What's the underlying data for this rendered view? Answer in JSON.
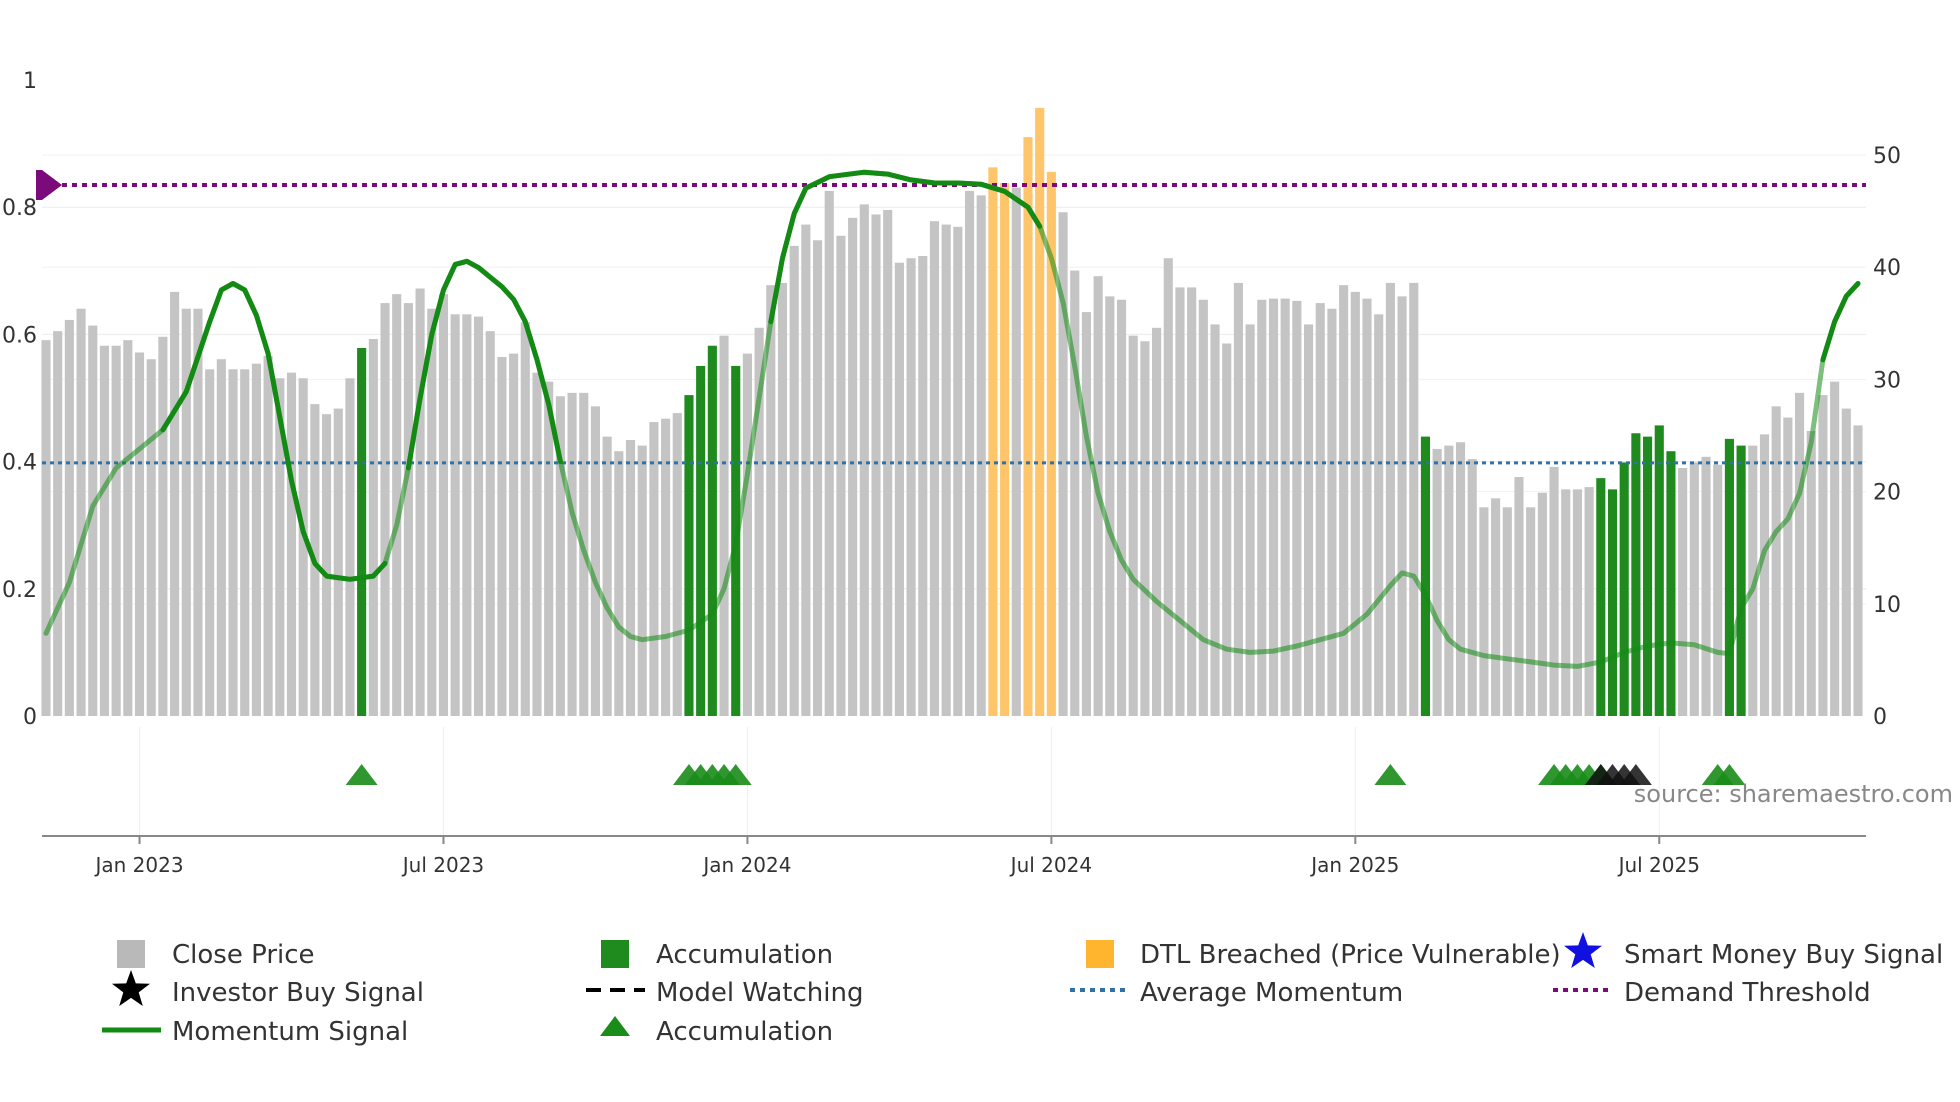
{
  "chart_data": {
    "type": "bar",
    "source": "source: sharemaestro.com",
    "left_axis": {
      "ticks": [
        "0",
        "0.2",
        "0.4",
        "0.6",
        "0.8",
        "1"
      ],
      "values": [
        0,
        0.2,
        0.4,
        0.6,
        0.8,
        1
      ],
      "range": [
        0,
        1
      ]
    },
    "right_axis": {
      "ticks": [
        "0",
        "10",
        "20",
        "30",
        "40",
        "50"
      ],
      "values": [
        0,
        10,
        20,
        30,
        40,
        50
      ],
      "range": [
        0,
        57
      ]
    },
    "x_axis": {
      "ticks": [
        "Jan 2023",
        "Jul 2023",
        "Jan 2024",
        "Jul 2024",
        "Jan 2025",
        "Jul 2025"
      ],
      "tick_weeks": [
        8,
        34,
        60,
        86,
        112,
        138
      ],
      "total_weeks": 156
    },
    "demand_threshold": 0.835,
    "average_momentum": 0.398,
    "bar_colors": {
      "gray": "#c4c4c4",
      "green": "#1f8b1f",
      "orange": "#ffc56b"
    },
    "bars": [
      {
        "v": 33.5,
        "c": "gray"
      },
      {
        "v": 34.3,
        "c": "gray"
      },
      {
        "v": 35.3,
        "c": "gray"
      },
      {
        "v": 36.3,
        "c": "gray"
      },
      {
        "v": 34.8,
        "c": "gray"
      },
      {
        "v": 33.0,
        "c": "gray"
      },
      {
        "v": 33.0,
        "c": "gray"
      },
      {
        "v": 33.5,
        "c": "gray"
      },
      {
        "v": 32.4,
        "c": "gray"
      },
      {
        "v": 31.8,
        "c": "gray"
      },
      {
        "v": 33.8,
        "c": "gray"
      },
      {
        "v": 37.8,
        "c": "gray"
      },
      {
        "v": 36.3,
        "c": "gray"
      },
      {
        "v": 36.3,
        "c": "gray"
      },
      {
        "v": 30.9,
        "c": "gray"
      },
      {
        "v": 31.8,
        "c": "gray"
      },
      {
        "v": 30.9,
        "c": "gray"
      },
      {
        "v": 30.9,
        "c": "gray"
      },
      {
        "v": 31.4,
        "c": "gray"
      },
      {
        "v": 32.1,
        "c": "gray"
      },
      {
        "v": 30.1,
        "c": "gray"
      },
      {
        "v": 30.6,
        "c": "gray"
      },
      {
        "v": 30.1,
        "c": "gray"
      },
      {
        "v": 27.8,
        "c": "gray"
      },
      {
        "v": 26.9,
        "c": "gray"
      },
      {
        "v": 27.4,
        "c": "gray"
      },
      {
        "v": 30.1,
        "c": "gray"
      },
      {
        "v": 32.8,
        "c": "green"
      },
      {
        "v": 33.6,
        "c": "gray"
      },
      {
        "v": 36.8,
        "c": "gray"
      },
      {
        "v": 37.6,
        "c": "gray"
      },
      {
        "v": 36.8,
        "c": "gray"
      },
      {
        "v": 38.1,
        "c": "gray"
      },
      {
        "v": 36.3,
        "c": "gray"
      },
      {
        "v": 37.6,
        "c": "gray"
      },
      {
        "v": 35.8,
        "c": "gray"
      },
      {
        "v": 35.8,
        "c": "gray"
      },
      {
        "v": 35.6,
        "c": "gray"
      },
      {
        "v": 34.3,
        "c": "gray"
      },
      {
        "v": 32.0,
        "c": "gray"
      },
      {
        "v": 32.3,
        "c": "gray"
      },
      {
        "v": 35.1,
        "c": "gray"
      },
      {
        "v": 30.6,
        "c": "gray"
      },
      {
        "v": 29.8,
        "c": "gray"
      },
      {
        "v": 28.5,
        "c": "gray"
      },
      {
        "v": 28.8,
        "c": "gray"
      },
      {
        "v": 28.8,
        "c": "gray"
      },
      {
        "v": 27.6,
        "c": "gray"
      },
      {
        "v": 24.9,
        "c": "gray"
      },
      {
        "v": 23.6,
        "c": "gray"
      },
      {
        "v": 24.6,
        "c": "gray"
      },
      {
        "v": 24.1,
        "c": "gray"
      },
      {
        "v": 26.2,
        "c": "gray"
      },
      {
        "v": 26.5,
        "c": "gray"
      },
      {
        "v": 27.0,
        "c": "gray"
      },
      {
        "v": 28.6,
        "c": "green"
      },
      {
        "v": 31.2,
        "c": "green"
      },
      {
        "v": 33.0,
        "c": "green"
      },
      {
        "v": 33.9,
        "c": "gray"
      },
      {
        "v": 31.2,
        "c": "green"
      },
      {
        "v": 32.3,
        "c": "gray"
      },
      {
        "v": 34.6,
        "c": "gray"
      },
      {
        "v": 38.4,
        "c": "gray"
      },
      {
        "v": 38.6,
        "c": "gray"
      },
      {
        "v": 41.9,
        "c": "gray"
      },
      {
        "v": 43.8,
        "c": "gray"
      },
      {
        "v": 42.4,
        "c": "gray"
      },
      {
        "v": 46.8,
        "c": "gray"
      },
      {
        "v": 42.8,
        "c": "gray"
      },
      {
        "v": 44.4,
        "c": "gray"
      },
      {
        "v": 45.6,
        "c": "gray"
      },
      {
        "v": 44.7,
        "c": "gray"
      },
      {
        "v": 45.1,
        "c": "gray"
      },
      {
        "v": 40.4,
        "c": "gray"
      },
      {
        "v": 40.8,
        "c": "gray"
      },
      {
        "v": 41.0,
        "c": "gray"
      },
      {
        "v": 44.1,
        "c": "gray"
      },
      {
        "v": 43.8,
        "c": "gray"
      },
      {
        "v": 43.6,
        "c": "gray"
      },
      {
        "v": 46.8,
        "c": "gray"
      },
      {
        "v": 46.4,
        "c": "gray"
      },
      {
        "v": 48.9,
        "c": "orange"
      },
      {
        "v": 47.5,
        "c": "orange"
      },
      {
        "v": 47.1,
        "c": "gray"
      },
      {
        "v": 51.6,
        "c": "orange"
      },
      {
        "v": 54.2,
        "c": "orange"
      },
      {
        "v": 48.5,
        "c": "orange"
      },
      {
        "v": 44.9,
        "c": "gray"
      },
      {
        "v": 39.7,
        "c": "gray"
      },
      {
        "v": 36.0,
        "c": "gray"
      },
      {
        "v": 39.2,
        "c": "gray"
      },
      {
        "v": 37.4,
        "c": "gray"
      },
      {
        "v": 37.1,
        "c": "gray"
      },
      {
        "v": 33.9,
        "c": "gray"
      },
      {
        "v": 33.4,
        "c": "gray"
      },
      {
        "v": 34.6,
        "c": "gray"
      },
      {
        "v": 40.8,
        "c": "gray"
      },
      {
        "v": 38.2,
        "c": "gray"
      },
      {
        "v": 38.2,
        "c": "gray"
      },
      {
        "v": 37.1,
        "c": "gray"
      },
      {
        "v": 34.9,
        "c": "gray"
      },
      {
        "v": 33.2,
        "c": "gray"
      },
      {
        "v": 38.6,
        "c": "gray"
      },
      {
        "v": 34.9,
        "c": "gray"
      },
      {
        "v": 37.1,
        "c": "gray"
      },
      {
        "v": 37.2,
        "c": "gray"
      },
      {
        "v": 37.2,
        "c": "gray"
      },
      {
        "v": 37.0,
        "c": "gray"
      },
      {
        "v": 34.9,
        "c": "gray"
      },
      {
        "v": 36.8,
        "c": "gray"
      },
      {
        "v": 36.3,
        "c": "gray"
      },
      {
        "v": 38.4,
        "c": "gray"
      },
      {
        "v": 37.8,
        "c": "gray"
      },
      {
        "v": 37.2,
        "c": "gray"
      },
      {
        "v": 35.8,
        "c": "gray"
      },
      {
        "v": 38.6,
        "c": "gray"
      },
      {
        "v": 37.4,
        "c": "gray"
      },
      {
        "v": 38.6,
        "c": "gray"
      },
      {
        "v": 24.9,
        "c": "green"
      },
      {
        "v": 23.8,
        "c": "gray"
      },
      {
        "v": 24.1,
        "c": "gray"
      },
      {
        "v": 24.4,
        "c": "gray"
      },
      {
        "v": 22.9,
        "c": "gray"
      },
      {
        "v": 18.6,
        "c": "gray"
      },
      {
        "v": 19.4,
        "c": "gray"
      },
      {
        "v": 18.6,
        "c": "gray"
      },
      {
        "v": 21.3,
        "c": "gray"
      },
      {
        "v": 18.6,
        "c": "gray"
      },
      {
        "v": 19.9,
        "c": "gray"
      },
      {
        "v": 22.2,
        "c": "gray"
      },
      {
        "v": 20.2,
        "c": "gray"
      },
      {
        "v": 20.2,
        "c": "gray"
      },
      {
        "v": 20.4,
        "c": "gray"
      },
      {
        "v": 21.2,
        "c": "green"
      },
      {
        "v": 20.2,
        "c": "green"
      },
      {
        "v": 22.6,
        "c": "green"
      },
      {
        "v": 25.2,
        "c": "green"
      },
      {
        "v": 24.9,
        "c": "green"
      },
      {
        "v": 25.9,
        "c": "green"
      },
      {
        "v": 23.6,
        "c": "green"
      },
      {
        "v": 22.1,
        "c": "gray"
      },
      {
        "v": 22.6,
        "c": "gray"
      },
      {
        "v": 23.1,
        "c": "gray"
      },
      {
        "v": 22.4,
        "c": "gray"
      },
      {
        "v": 24.7,
        "c": "green"
      },
      {
        "v": 24.1,
        "c": "green"
      },
      {
        "v": 24.1,
        "c": "gray"
      },
      {
        "v": 25.1,
        "c": "gray"
      },
      {
        "v": 27.6,
        "c": "gray"
      },
      {
        "v": 26.6,
        "c": "gray"
      },
      {
        "v": 28.8,
        "c": "gray"
      },
      {
        "v": 25.4,
        "c": "gray"
      },
      {
        "v": 28.6,
        "c": "gray"
      },
      {
        "v": 29.8,
        "c": "gray"
      },
      {
        "v": 27.4,
        "c": "gray"
      },
      {
        "v": 25.9,
        "c": "gray"
      }
    ],
    "momentum": [
      [
        0,
        0.13
      ],
      [
        2,
        0.21
      ],
      [
        4,
        0.33
      ],
      [
        6,
        0.39
      ],
      [
        8,
        0.42
      ],
      [
        10,
        0.45
      ],
      [
        12,
        0.51
      ],
      [
        14,
        0.62
      ],
      [
        15,
        0.67
      ],
      [
        16,
        0.68
      ],
      [
        17,
        0.67
      ],
      [
        18,
        0.63
      ],
      [
        19,
        0.57
      ],
      [
        20,
        0.47
      ],
      [
        21,
        0.37
      ],
      [
        22,
        0.29
      ],
      [
        23,
        0.24
      ],
      [
        24,
        0.22
      ],
      [
        26,
        0.215
      ],
      [
        28,
        0.22
      ],
      [
        29,
        0.24
      ],
      [
        30,
        0.3
      ],
      [
        31,
        0.39
      ],
      [
        32,
        0.5
      ],
      [
        33,
        0.6
      ],
      [
        34,
        0.67
      ],
      [
        35,
        0.71
      ],
      [
        36,
        0.715
      ],
      [
        37,
        0.705
      ],
      [
        38,
        0.69
      ],
      [
        39,
        0.675
      ],
      [
        40,
        0.655
      ],
      [
        41,
        0.62
      ],
      [
        42,
        0.56
      ],
      [
        43,
        0.49
      ],
      [
        44,
        0.4
      ],
      [
        45,
        0.32
      ],
      [
        46,
        0.26
      ],
      [
        47,
        0.21
      ],
      [
        48,
        0.17
      ],
      [
        49,
        0.14
      ],
      [
        50,
        0.125
      ],
      [
        51,
        0.12
      ],
      [
        53,
        0.125
      ],
      [
        55,
        0.135
      ],
      [
        57,
        0.16
      ],
      [
        58,
        0.2
      ],
      [
        59,
        0.27
      ],
      [
        60,
        0.38
      ],
      [
        61,
        0.5
      ],
      [
        62,
        0.62
      ],
      [
        63,
        0.72
      ],
      [
        64,
        0.79
      ],
      [
        65,
        0.83
      ],
      [
        67,
        0.848
      ],
      [
        70,
        0.855
      ],
      [
        72,
        0.852
      ],
      [
        74,
        0.843
      ],
      [
        76,
        0.838
      ],
      [
        78,
        0.838
      ],
      [
        80,
        0.836
      ],
      [
        82,
        0.825
      ],
      [
        84,
        0.8
      ],
      [
        85,
        0.77
      ],
      [
        86,
        0.72
      ],
      [
        87,
        0.65
      ],
      [
        88,
        0.55
      ],
      [
        89,
        0.44
      ],
      [
        90,
        0.35
      ],
      [
        91,
        0.29
      ],
      [
        92,
        0.245
      ],
      [
        93,
        0.215
      ],
      [
        95,
        0.18
      ],
      [
        97,
        0.15
      ],
      [
        99,
        0.12
      ],
      [
        101,
        0.105
      ],
      [
        103,
        0.1
      ],
      [
        105,
        0.102
      ],
      [
        107,
        0.11
      ],
      [
        109,
        0.12
      ],
      [
        111,
        0.13
      ],
      [
        113,
        0.16
      ],
      [
        115,
        0.205
      ],
      [
        116,
        0.225
      ],
      [
        117,
        0.22
      ],
      [
        118,
        0.19
      ],
      [
        119,
        0.15
      ],
      [
        120,
        0.12
      ],
      [
        121,
        0.105
      ],
      [
        123,
        0.095
      ],
      [
        125,
        0.09
      ],
      [
        127,
        0.085
      ],
      [
        129,
        0.08
      ],
      [
        131,
        0.078
      ],
      [
        133,
        0.085
      ],
      [
        135,
        0.1
      ],
      [
        137,
        0.11
      ],
      [
        139,
        0.115
      ],
      [
        141,
        0.112
      ],
      [
        143,
        0.1
      ],
      [
        144,
        0.098
      ],
      [
        145,
        0.17
      ],
      [
        146,
        0.2
      ],
      [
        147,
        0.26
      ],
      [
        148,
        0.29
      ],
      [
        149,
        0.31
      ],
      [
        150,
        0.35
      ],
      [
        151,
        0.43
      ],
      [
        152,
        0.56
      ],
      [
        153,
        0.62
      ],
      [
        154,
        0.66
      ],
      [
        155,
        0.68
      ]
    ],
    "momentum_color": "#138a13",
    "momentum_bright_ranges": [
      [
        10,
        29
      ],
      [
        31,
        44
      ],
      [
        62,
        85
      ],
      [
        152,
        155
      ]
    ],
    "accumulation_markers": [
      27,
      55,
      56,
      57,
      58,
      59,
      115,
      129,
      130,
      131,
      132,
      133,
      143,
      144
    ],
    "investor_buy_markers": [
      133,
      134,
      135,
      136
    ],
    "legend": {
      "close_price": "Close Price",
      "accumulation_bar": "Accumulation",
      "dtl_breached": "DTL Breached (Price Vulnerable)",
      "smart_money": "Smart Money Buy Signal",
      "investor_buy": "Investor Buy Signal",
      "model_watching": "Model Watching",
      "average_momentum": "Average Momentum",
      "demand_threshold": "Demand Threshold",
      "momentum_signal": "Momentum Signal",
      "accumulation_marker": "Accumulation"
    },
    "colors": {
      "threshold": "#7b0a7b",
      "average": "#2f72a8",
      "triangle": "#1a8c1a",
      "investor": "#111111",
      "smart_money": "#1010e0",
      "grid": "#ececec"
    }
  }
}
